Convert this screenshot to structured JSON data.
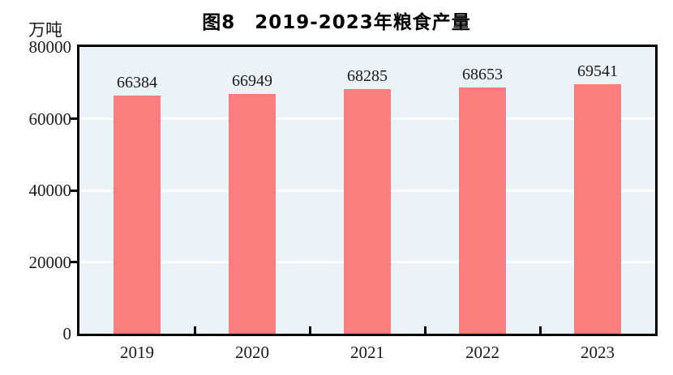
{
  "figure": {
    "title": "图8　2019-2023年粮食产量",
    "unit_label": "万吨"
  },
  "colors": {
    "bar": "#FA7E7E",
    "plot_background": "#EBF3F8",
    "gridline": "#FFFFFF",
    "axis_border": "#000000",
    "text": "#1A1A1A"
  },
  "chart_data": {
    "type": "bar",
    "title": "图8　2019-2023年粮食产量",
    "ylabel": "万吨",
    "xlabel": "",
    "categories": [
      "2019",
      "2020",
      "2021",
      "2022",
      "2023"
    ],
    "values": [
      66384,
      66949,
      68285,
      68653,
      69541
    ],
    "data_labels": [
      "66384",
      "66949",
      "68285",
      "68653",
      "69541"
    ],
    "ylim": [
      0,
      80000
    ],
    "yticks": [
      0,
      20000,
      40000,
      60000,
      80000
    ],
    "ytick_labels": [
      "0",
      "20000",
      "40000",
      "60000",
      "80000"
    ],
    "grid": true,
    "legend": "none"
  }
}
